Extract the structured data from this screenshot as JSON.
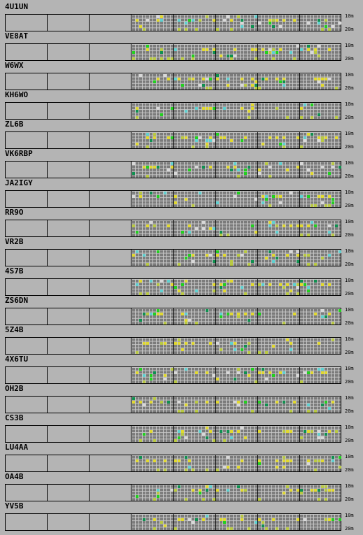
{
  "band_labels": {
    "top": "10m",
    "bottom": "20m"
  },
  "colors": {
    "background": "#b4b4b4",
    "grid_bg": "#7b7b7b",
    "grid_line": "#c8c8c8",
    "levels": [
      "#b8c844",
      "#e0d830",
      "#22d020",
      "#109050",
      "#60d0d0",
      "#d8d8d8"
    ]
  },
  "stations": [
    {
      "call": "4U1UN"
    },
    {
      "call": "VE8AT"
    },
    {
      "call": "W6WX"
    },
    {
      "call": "KH6WO"
    },
    {
      "call": "ZL6B"
    },
    {
      "call": "VK6RBP"
    },
    {
      "call": "JA2IGY"
    },
    {
      "call": "RR9O"
    },
    {
      "call": "VR2B"
    },
    {
      "call": "4S7B"
    },
    {
      "call": "ZS6DN"
    },
    {
      "call": "5Z4B"
    },
    {
      "call": "4X6TU"
    },
    {
      "call": "OH2B"
    },
    {
      "call": "CS3B"
    },
    {
      "call": "LU4AA"
    },
    {
      "call": "OA4B"
    },
    {
      "call": "YV5B"
    }
  ]
}
